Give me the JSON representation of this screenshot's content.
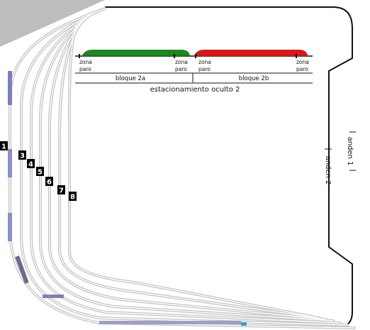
{
  "labels": {
    "zona": "zona",
    "paro": "paro",
    "bloque_2a": "bloque 2a",
    "bloque_2b": "bloque 2b",
    "estacionamiento": "estacionamiento oculto 2",
    "anden_1": "anden 1",
    "anden_2": "anden 2"
  },
  "track_numbers": [
    "1",
    "3",
    "4",
    "5",
    "6",
    "7",
    "8"
  ],
  "colors": {
    "block_2a": "#1a8a1a",
    "block_2b": "#e01414",
    "track": "#c8c8c8",
    "corner": "#bdbdbd",
    "outline": "#111111"
  }
}
